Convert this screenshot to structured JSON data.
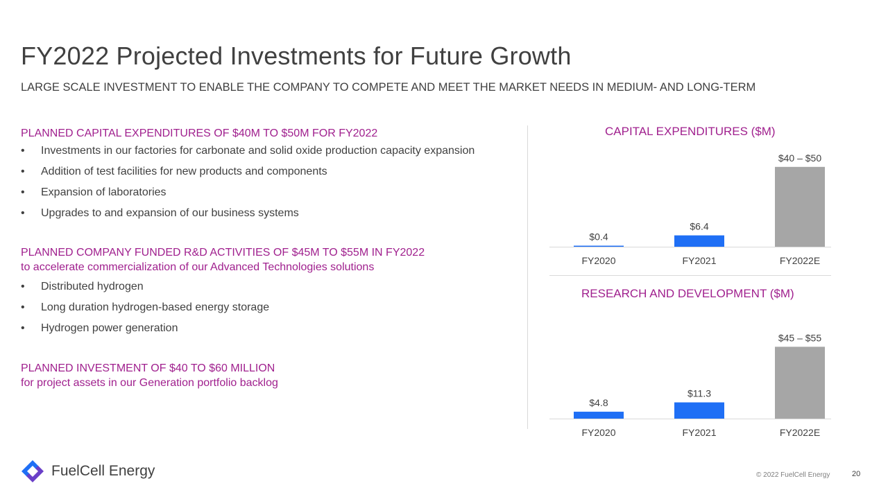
{
  "header": {
    "title": "FY2022 Projected Investments for Future Growth",
    "subtitle": "LARGE SCALE INVESTMENT TO ENABLE THE COMPANY TO COMPETE AND MEET THE MARKET NEEDS IN MEDIUM- AND LONG-TERM"
  },
  "sections": [
    {
      "heading": "PLANNED CAPITAL EXPENDITURES OF $40M TO $50M FOR FY2022",
      "subheading": "",
      "bullets": [
        "Investments in our factories for carbonate and solid oxide production capacity expansion",
        "Addition of test facilities for new products and components",
        "Expansion of laboratories",
        "Upgrades to and expansion of our business systems"
      ]
    },
    {
      "heading": "PLANNED COMPANY FUNDED R&D ACTIVITIES OF $45M TO $55M IN FY2022",
      "subheading": "to accelerate commercialization of our Advanced Technologies solutions",
      "bullets": [
        "Distributed hydrogen",
        "Long duration hydrogen-based energy storage",
        "Hydrogen power generation"
      ]
    },
    {
      "heading": "PLANNED INVESTMENT OF $40 TO $60 MILLION",
      "subheading": "for project assets in our Generation portfolio backlog",
      "bullets": []
    }
  ],
  "bullet_glyph": "•",
  "colors": {
    "accent": "#a0208e",
    "actual_bar": "#1f6ff5",
    "projected_bar": "#a6a6a6",
    "text": "#404040"
  },
  "chart_data": [
    {
      "type": "bar",
      "title": "CAPITAL EXPENDITURES ($M)",
      "categories": [
        "FY2020",
        "FY2021",
        "FY2022E"
      ],
      "values": [
        0.4,
        6.4,
        45
      ],
      "range_low": [
        null,
        null,
        40
      ],
      "range_high": [
        null,
        null,
        50
      ],
      "labels": [
        "$0.4",
        "$6.4",
        "$40 – $50"
      ],
      "projected": [
        false,
        false,
        true
      ],
      "xlabel": "",
      "ylabel": "",
      "ylim": [
        0,
        50
      ],
      "grid": false,
      "legend": "none"
    },
    {
      "type": "bar",
      "title": "RESEARCH AND DEVELOPMENT ($M)",
      "categories": [
        "FY2020",
        "FY2021",
        "FY2022E"
      ],
      "values": [
        4.8,
        11.3,
        50
      ],
      "range_low": [
        null,
        null,
        45
      ],
      "range_high": [
        null,
        null,
        55
      ],
      "labels": [
        "$4.8",
        "$11.3",
        "$45 – $55"
      ],
      "projected": [
        false,
        false,
        true
      ],
      "xlabel": "",
      "ylabel": "",
      "ylim": [
        0,
        55
      ],
      "grid": false,
      "legend": "none"
    }
  ],
  "footer": {
    "logo_text": "FuelCell Energy",
    "logo_icon": "fuelcell-logo-icon",
    "copyright": "© 2022 FuelCell Energy",
    "page_number": "20"
  }
}
